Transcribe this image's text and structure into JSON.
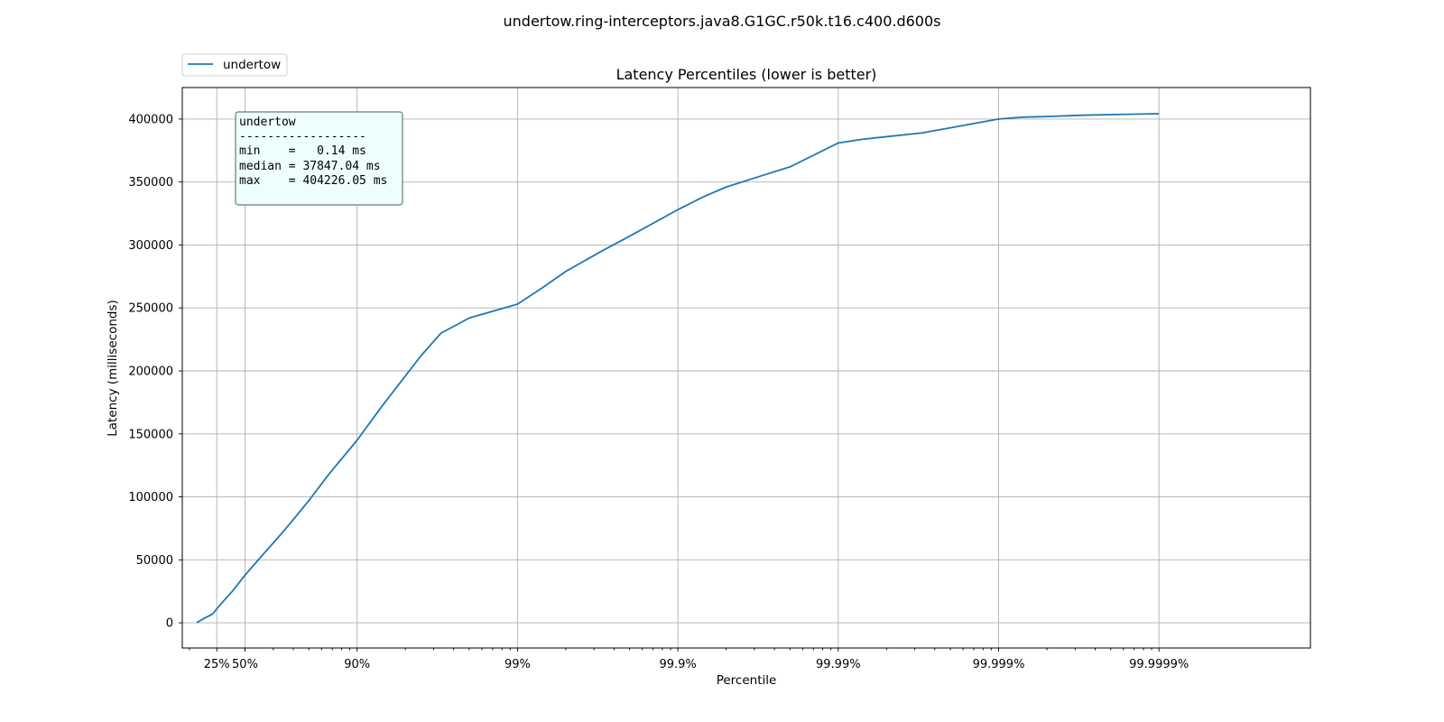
{
  "figure_title": "undertow.ring-interceptors.java8.G1GC.r50k.t16.c400.d600s",
  "chart_data": {
    "type": "line",
    "title": "Latency Percentiles (lower is better)",
    "xlabel": "Percentile",
    "ylabel": "Latency (milliseconds)",
    "x_scale": "log10 of 1/(1 - percentile)",
    "x_range_percentile": [
      0.0,
      0.999999
    ],
    "ylim": [
      -20000,
      425000
    ],
    "grid": true,
    "x_tick_labels": [
      "25%",
      "50%",
      "90%",
      "99%",
      "99.9%",
      "99.99%",
      "99.999%",
      "99.9999%"
    ],
    "x_tick_percentiles": [
      0.25,
      0.5,
      0.9,
      0.99,
      0.999,
      0.9999,
      0.99999,
      0.999999
    ],
    "y_ticks": [
      0,
      50000,
      100000,
      150000,
      200000,
      250000,
      300000,
      350000,
      400000
    ],
    "y_tick_labels": [
      "0",
      "50000",
      "100000",
      "150000",
      "200000",
      "250000",
      "300000",
      "350000",
      "400000"
    ],
    "legend": {
      "placement": "upper-left, above axes",
      "entries": [
        "undertow"
      ]
    },
    "series": [
      {
        "name": "undertow",
        "color": "#1f77b4",
        "points": [
          [
            0.0,
            140
          ],
          [
            0.1,
            3500
          ],
          [
            0.2,
            6800
          ],
          [
            0.3,
            15500
          ],
          [
            0.4,
            25000
          ],
          [
            0.5,
            37847
          ],
          [
            0.6,
            52000
          ],
          [
            0.7,
            70000
          ],
          [
            0.75,
            82000
          ],
          [
            0.8,
            97000
          ],
          [
            0.85,
            118000
          ],
          [
            0.9,
            145000
          ],
          [
            0.93,
            172000
          ],
          [
            0.95,
            196000
          ],
          [
            0.96,
            212000
          ],
          [
            0.97,
            230000
          ],
          [
            0.98,
            242000
          ],
          [
            0.99,
            253000
          ],
          [
            0.993,
            266000
          ],
          [
            0.995,
            279000
          ],
          [
            0.997,
            295000
          ],
          [
            0.998,
            307000
          ],
          [
            0.999,
            328000
          ],
          [
            0.9993,
            338000
          ],
          [
            0.9995,
            346000
          ],
          [
            0.9997,
            355000
          ],
          [
            0.9998,
            362000
          ],
          [
            0.9999,
            381000
          ],
          [
            0.99993,
            384000
          ],
          [
            0.99995,
            386000
          ],
          [
            0.99997,
            389000
          ],
          [
            0.99998,
            393000
          ],
          [
            0.99999,
            400000
          ],
          [
            0.999993,
            401500
          ],
          [
            0.999995,
            402000
          ],
          [
            0.999997,
            403000
          ],
          [
            0.999998,
            403500
          ],
          [
            0.999999,
            404226
          ]
        ]
      }
    ],
    "annotation": {
      "lines": [
        "undertow",
        "------------------",
        "min    =   0.14 ms",
        "median = 37847.04 ms",
        "max    = 404226.05 ms"
      ],
      "background": "#eefefe",
      "border": "#6a7a7a"
    }
  }
}
